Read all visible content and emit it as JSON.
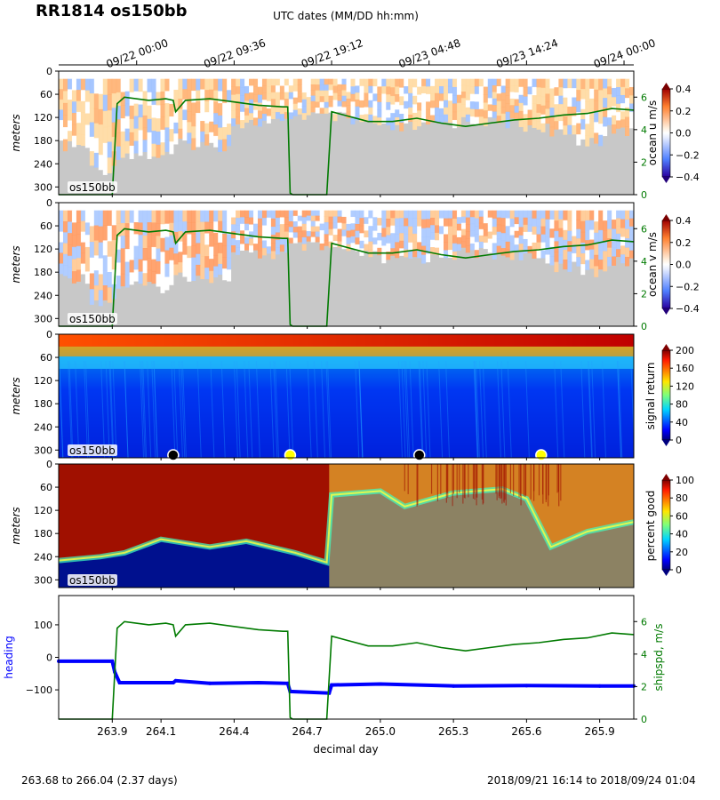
{
  "title": "RR1814 os150bb",
  "top_axis_label": "UTC dates (MM/DD hh:mm)",
  "top_ticks": [
    "09/22 00:00",
    "09/22 09:36",
    "09/22 19:12",
    "09/23 04:48",
    "09/23 14:24",
    "09/24 00:00"
  ],
  "footer_left": "263.68 to 266.04 (2.37 days)",
  "footer_right": "2018/09/21 16:14 to 2018/09/24 01:04",
  "colors": {
    "ship_speed": "#007a00",
    "heading": "#0000ff",
    "bad_data": "#c8c8c8"
  },
  "chart_data": [
    {
      "type": "heatmap",
      "panel": "ocean u",
      "inset_label": "os150bb",
      "ylabel": "meters",
      "ylim": [
        320,
        0
      ],
      "yticks": [
        "0",
        "60",
        "120",
        "180",
        "240",
        "300"
      ],
      "colorbar_label": "ocean u m/s",
      "colorbar_ticks": [
        "0.4",
        "0.2",
        "0.0",
        "−0.2",
        "−0.4"
      ],
      "colormap": "bwr",
      "right_axis_ticks": [
        "6",
        "4",
        "2",
        "0"
      ],
      "overlay": "ship speed"
    },
    {
      "type": "heatmap",
      "panel": "ocean v",
      "inset_label": "os150bb",
      "ylabel": "meters",
      "ylim": [
        320,
        0
      ],
      "yticks": [
        "0",
        "60",
        "120",
        "180",
        "240",
        "300"
      ],
      "colorbar_label": "ocean v m/s",
      "colorbar_ticks": [
        "0.4",
        "0.2",
        "0.0",
        "−0.2",
        "−0.4"
      ],
      "colormap": "bwr",
      "right_axis_ticks": [
        "6",
        "4",
        "2",
        "0"
      ],
      "overlay": "ship speed"
    },
    {
      "type": "heatmap",
      "panel": "signal return",
      "inset_label": "os150bb",
      "ylabel": "meters",
      "ylim": [
        320,
        0
      ],
      "yticks": [
        "0",
        "60",
        "120",
        "180",
        "240",
        "300"
      ],
      "colorbar_label": "signal return",
      "colorbar_ticks": [
        "200",
        "160",
        "120",
        "80",
        "40",
        "0"
      ],
      "colormap": "jet",
      "markers": [
        {
          "x": 264.15,
          "color": "#000000"
        },
        {
          "x": 264.63,
          "color": "#ffff00"
        },
        {
          "x": 265.16,
          "color": "#000000"
        },
        {
          "x": 265.66,
          "color": "#ffff00"
        }
      ]
    },
    {
      "type": "heatmap",
      "panel": "percent good",
      "inset_label": "os150bb",
      "ylabel": "meters",
      "ylim": [
        320,
        0
      ],
      "yticks": [
        "0",
        "60",
        "120",
        "180",
        "240",
        "300"
      ],
      "colorbar_label": "percent good",
      "colorbar_ticks": [
        "100",
        "80",
        "60",
        "40",
        "20",
        "0"
      ],
      "colormap": "jet"
    },
    {
      "type": "line",
      "panel": "heading and ship speed",
      "xlabel": "decimal day",
      "xlim": [
        263.68,
        266.04
      ],
      "xticks": [
        "263.9",
        "264.1",
        "264.4",
        "264.7",
        "265.0",
        "265.3",
        "265.6",
        "265.9"
      ],
      "xtick_values": [
        263.9,
        264.1,
        264.4,
        264.7,
        265.0,
        265.3,
        265.6,
        265.9
      ],
      "ylabel": "heading",
      "ylim": [
        -190,
        190
      ],
      "yticks": [
        "100",
        "0",
        "−100"
      ],
      "y2label": "shipspd, m/s",
      "y2lim": [
        0,
        7.6
      ],
      "y2ticks": [
        "6",
        "4",
        "2",
        "0"
      ],
      "series": [
        {
          "axis": "left",
          "x": [
            263.68,
            263.9,
            263.91,
            263.93,
            264.15,
            264.16,
            264.3,
            264.5,
            264.62,
            264.63,
            264.79,
            264.8,
            265.0,
            265.3,
            265.6,
            265.9,
            266.04
          ],
          "y": [
            -12,
            -12,
            -45,
            -78,
            -78,
            -72,
            -80,
            -78,
            -80,
            -105,
            -110,
            -85,
            -82,
            -88,
            -87,
            -88,
            -88
          ]
        },
        {
          "axis": "right",
          "x": [
            263.68,
            263.9,
            263.92,
            263.95,
            264.05,
            264.12,
            264.15,
            264.16,
            264.2,
            264.3,
            264.4,
            264.5,
            264.6,
            264.62,
            264.63,
            264.64,
            264.78,
            264.8,
            264.85,
            264.95,
            265.05,
            265.15,
            265.25,
            265.35,
            265.45,
            265.55,
            265.65,
            265.75,
            265.85,
            265.95,
            266.04
          ],
          "y": [
            0,
            0,
            5.6,
            6.0,
            5.8,
            5.9,
            5.8,
            5.1,
            5.8,
            5.9,
            5.7,
            5.5,
            5.4,
            5.4,
            0.1,
            0,
            0,
            5.1,
            4.9,
            4.5,
            4.5,
            4.7,
            4.4,
            4.2,
            4.4,
            4.6,
            4.7,
            4.9,
            5.0,
            5.3,
            5.2
          ]
        }
      ]
    }
  ]
}
